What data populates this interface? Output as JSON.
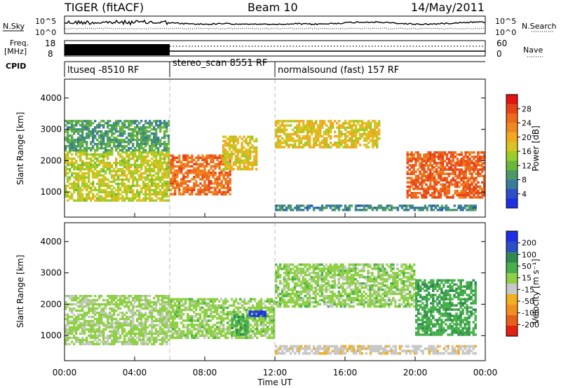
{
  "header": {
    "title_left": "TIGER (fitACF)",
    "title_center": "Beam 10",
    "title_right": "14/May/2011"
  },
  "top_panels": {
    "nsky_label": "N.Sky",
    "nsky_ticks": [
      "10^5",
      "10^0"
    ],
    "nsearch_label": "N.Search",
    "nsearch_ticks": [
      "10^5",
      "10^0"
    ],
    "freq_label_1": "Freq.",
    "freq_label_2": "[MHz]",
    "freq_ticks": [
      "18",
      "8"
    ],
    "nave_label": "Nave",
    "nave_ticks": [
      "60",
      "0"
    ],
    "cpid_label": "CPID",
    "cpid_segments": [
      {
        "label": "ltuseq -8510 RF",
        "start_hour": 0,
        "end_hour": 6
      },
      {
        "label": "stereo_scan 8551 RF",
        "start_hour": 6,
        "end_hour": 12
      },
      {
        "label": "normalsound (fast) 157 RF",
        "start_hour": 12,
        "end_hour": 24
      }
    ]
  },
  "chart_data": [
    {
      "type": "heatmap",
      "ylabel": "Slant Range [km]",
      "ylim": [
        200,
        4600
      ],
      "yticks": [
        1000,
        2000,
        3000,
        4000
      ],
      "colorbar_label": "Power [dB]",
      "colorbar_range": [
        0,
        32
      ],
      "colorbar_ticks": [
        4,
        8,
        12,
        16,
        20,
        24,
        28
      ],
      "colors": [
        "#1f2ee6",
        "#2a4fc8",
        "#3a7a9a",
        "#4a9a68",
        "#6ab83a",
        "#9ccc26",
        "#d8c420",
        "#f2a91e",
        "#f08a1e",
        "#ee6a1c",
        "#e8421a",
        "#e41414"
      ],
      "features": [
        {
          "x": [
            0,
            6
          ],
          "y": [
            700,
            2300
          ],
          "value": 16
        },
        {
          "x": [
            0,
            6
          ],
          "y": [
            2300,
            3300
          ],
          "value": 10
        },
        {
          "x": [
            6,
            9.5
          ],
          "y": [
            900,
            2200
          ],
          "value": 25
        },
        {
          "x": [
            9,
            11
          ],
          "y": [
            1700,
            2800
          ],
          "value": 18
        },
        {
          "x": [
            12,
            18
          ],
          "y": [
            2400,
            3300
          ],
          "value": 18
        },
        {
          "x": [
            12,
            23.5
          ],
          "y": [
            400,
            600
          ],
          "value": 8
        },
        {
          "x": [
            19.5,
            24
          ],
          "y": [
            800,
            2300
          ],
          "value": 26
        }
      ]
    },
    {
      "type": "heatmap",
      "ylabel": "Slant Range [km]",
      "ylim": [
        200,
        4600
      ],
      "yticks": [
        1000,
        2000,
        3000,
        4000
      ],
      "colorbar_label": "Velocity [m s⁻¹]",
      "colorbar_range": [
        -250,
        250
      ],
      "colorbar_ticks": [
        200,
        100,
        50,
        15,
        -15,
        -50,
        -100,
        -200
      ],
      "colors": [
        "#1f2ee6",
        "#2a4fc8",
        "#2f8a52",
        "#47b04a",
        "#8fd046",
        "#c8c8c8",
        "#f0b020",
        "#f09020",
        "#e86018",
        "#e42014"
      ],
      "features": [
        {
          "x": [
            0,
            6
          ],
          "y": [
            700,
            2300
          ],
          "value": -5
        },
        {
          "x": [
            6,
            12
          ],
          "y": [
            900,
            2200
          ],
          "value": 0
        },
        {
          "x": [
            10.5,
            11.5
          ],
          "y": [
            1600,
            1800
          ],
          "value": 200
        },
        {
          "x": [
            9.5,
            10.5
          ],
          "y": [
            1000,
            1700
          ],
          "value": 40
        },
        {
          "x": [
            12,
            20
          ],
          "y": [
            1900,
            3300
          ],
          "value": 0
        },
        {
          "x": [
            12,
            23.5
          ],
          "y": [
            400,
            700
          ],
          "value": -40
        },
        {
          "x": [
            20,
            23.5
          ],
          "y": [
            1000,
            2800
          ],
          "value": 40
        }
      ]
    }
  ],
  "x_axis": {
    "ticks": [
      "00:00",
      "04:00",
      "08:00",
      "12:00",
      "16:00",
      "20:00",
      "00:00"
    ],
    "tick_hours": [
      0,
      4,
      8,
      12,
      16,
      20,
      24
    ],
    "label": "Time UT"
  }
}
